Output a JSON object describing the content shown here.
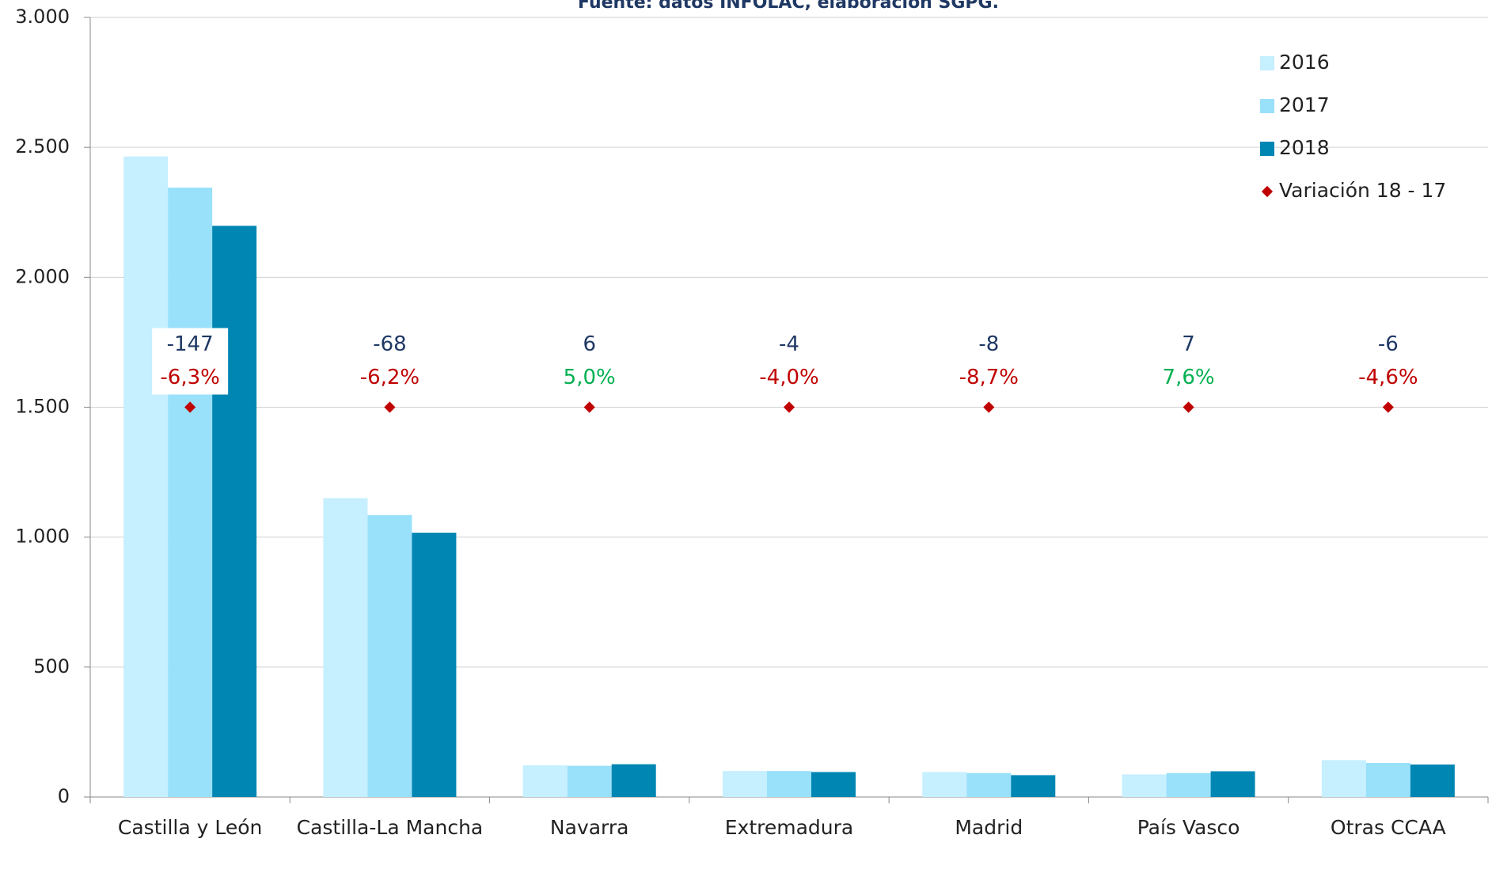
{
  "chart_data": {
    "type": "bar",
    "subtitle": "Fuente: datos INFOLAC, elaboración SGPG.",
    "categories": [
      "Castilla y León",
      "Castilla-La Mancha",
      "Navarra",
      "Extremadura",
      "Madrid",
      "País Vasco",
      "Otras CCAA"
    ],
    "series": [
      {
        "name": "2016",
        "color": "#c6efff",
        "values": [
          2465,
          1150,
          122,
          100,
          96,
          87,
          142
        ]
      },
      {
        "name": "2017",
        "color": "#99e0fb",
        "values": [
          2345,
          1085,
          120,
          100,
          92,
          92,
          131
        ]
      },
      {
        "name": "2018",
        "color": "#0086b3",
        "values": [
          2198,
          1017,
          126,
          96,
          84,
          99,
          125
        ]
      }
    ],
    "variation": {
      "name": "Variación 18 - 17",
      "color": "#c00000",
      "values": [
        -147,
        -68,
        6,
        -4,
        -8,
        7,
        -6
      ],
      "pct": [
        -6.3,
        -6.2,
        5.0,
        -4.0,
        -8.7,
        7.6,
        -4.6
      ],
      "pct_labels": [
        "-6,3%",
        "-6,2%",
        "5,0%",
        "-4,0%",
        "-8,7%",
        "7,6%",
        "-4,6%"
      ]
    },
    "ylim": [
      0,
      3000
    ],
    "yticks": [
      0,
      500,
      {
        "value": 1000,
        "label": "1.000"
      },
      {
        "value": 1500,
        "label": "1.500"
      },
      {
        "value": 2000,
        "label": "2.000"
      },
      {
        "value": 2500,
        "label": "2.500"
      },
      {
        "value": 3000,
        "label": "3.000"
      }
    ],
    "grid": true
  }
}
